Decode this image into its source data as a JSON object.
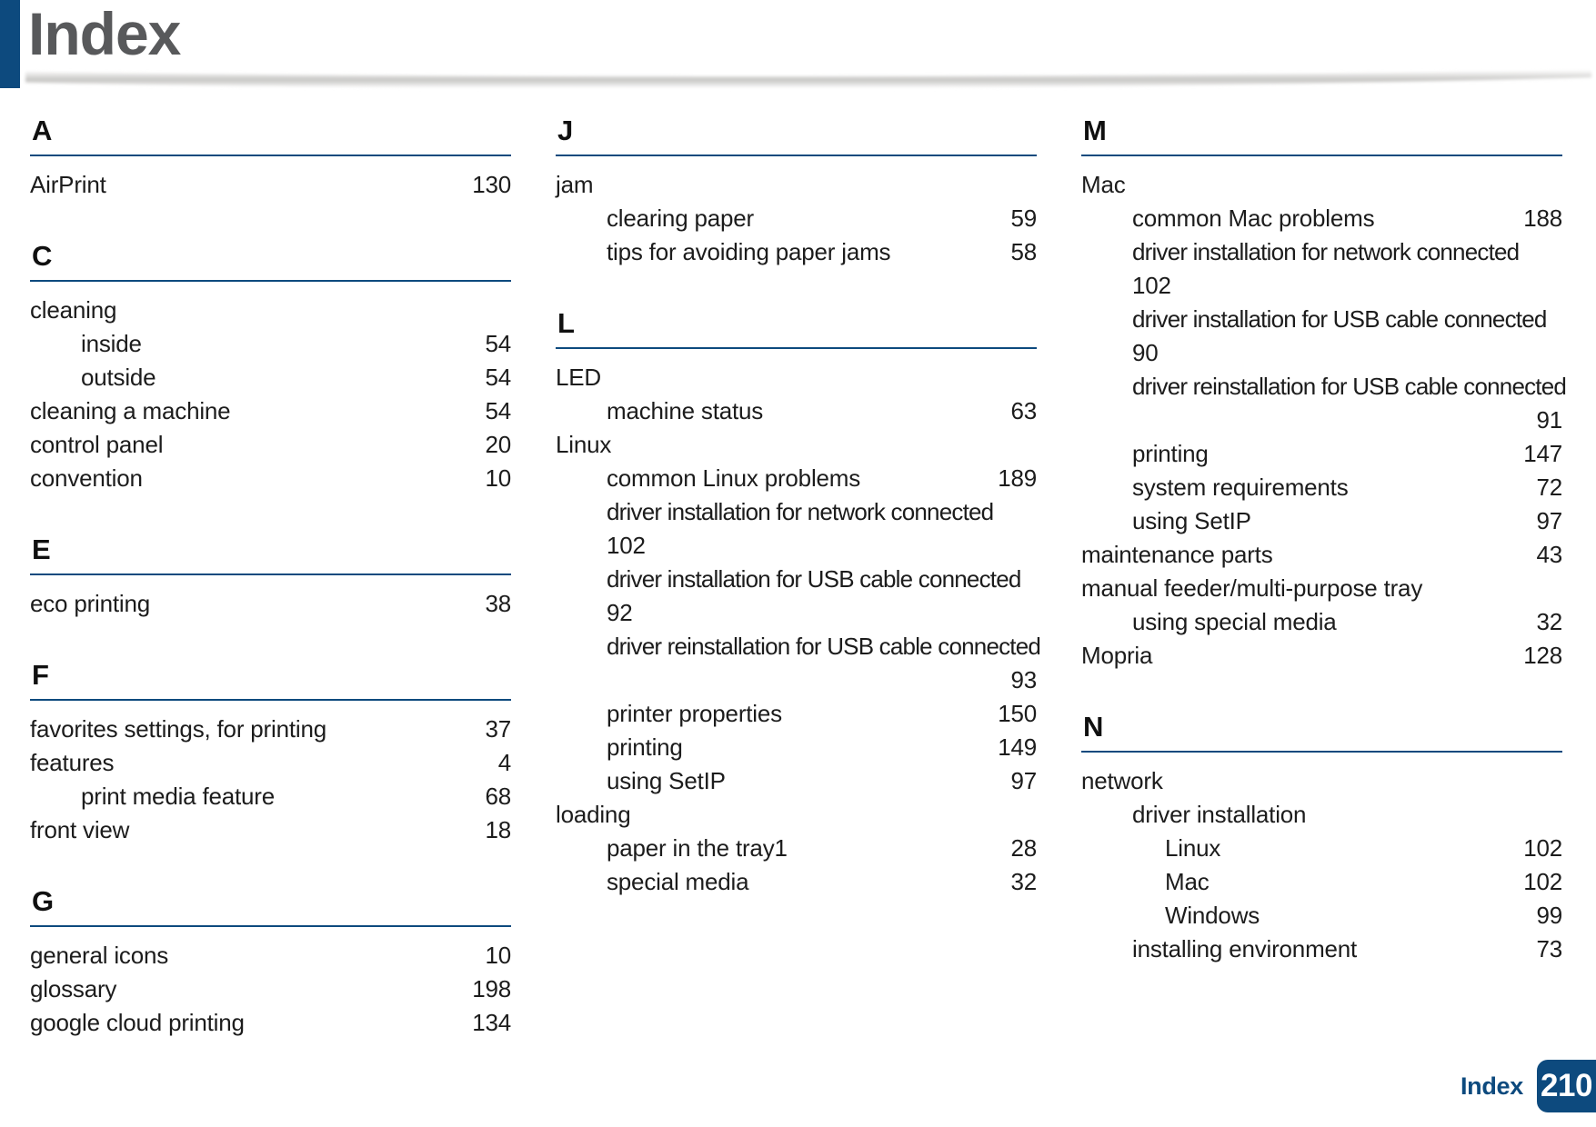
{
  "page": {
    "title": "Index",
    "footer": {
      "label": "Index",
      "page_number": "210"
    },
    "colors": {
      "navy": "#0d4a7e",
      "title_gray": "#58595b",
      "text": "#1c1c1c"
    }
  },
  "columns": [
    {
      "sections": [
        {
          "letter": "A",
          "entries": [
            {
              "text": "AirPrint",
              "page": "130",
              "level": 0
            }
          ]
        },
        {
          "letter": "C",
          "entries": [
            {
              "text": "cleaning",
              "level": 0
            },
            {
              "text": "inside",
              "page": "54",
              "level": 1
            },
            {
              "text": "outside",
              "page": "54",
              "level": 1
            },
            {
              "text": "cleaning a machine",
              "page": "54",
              "level": 0
            },
            {
              "text": "control panel",
              "page": "20",
              "level": 0
            },
            {
              "text": "convention",
              "page": "10",
              "level": 0
            }
          ]
        },
        {
          "letter": "E",
          "entries": [
            {
              "text": "eco printing",
              "page": "38",
              "level": 0
            }
          ]
        },
        {
          "letter": "F",
          "entries": [
            {
              "text": "favorites settings, for printing",
              "page": "37",
              "level": 0
            },
            {
              "text": "features",
              "page": "4",
              "level": 0
            },
            {
              "text": "print media feature",
              "page": "68",
              "level": 1
            },
            {
              "text": "front view",
              "page": "18",
              "level": 0
            }
          ]
        },
        {
          "letter": "G",
          "entries": [
            {
              "text": "general icons",
              "page": "10",
              "level": 0
            },
            {
              "text": "glossary",
              "page": "198",
              "level": 0
            },
            {
              "text": "google cloud printing",
              "page": "134",
              "level": 0
            }
          ]
        }
      ]
    },
    {
      "sections": [
        {
          "letter": "J",
          "entries": [
            {
              "text": "jam",
              "level": 0
            },
            {
              "text": "clearing paper",
              "page": "59",
              "level": 1
            },
            {
              "text": "tips for avoiding paper jams",
              "page": "58",
              "level": 1
            }
          ]
        },
        {
          "letter": "L",
          "entries": [
            {
              "text": "LED",
              "level": 0
            },
            {
              "text": "machine status",
              "page": "63",
              "level": 1
            },
            {
              "text": "Linux",
              "level": 0
            },
            {
              "text": "common Linux problems",
              "page": "189",
              "level": 1
            },
            {
              "text": "driver installation for network connected",
              "page": "102",
              "level": 1,
              "wrap": "left"
            },
            {
              "text": "driver installation for USB cable connected",
              "page": "92",
              "level": 1,
              "wrap": "left"
            },
            {
              "text": "driver reinstallation for USB cable connected",
              "page": "93",
              "level": 1,
              "wrap": "right"
            },
            {
              "text": "printer properties",
              "page": "150",
              "level": 1
            },
            {
              "text": "printing",
              "page": "149",
              "level": 1
            },
            {
              "text": "using SetIP",
              "page": "97",
              "level": 1
            },
            {
              "text": "loading",
              "level": 0
            },
            {
              "text": "paper in the tray1",
              "page": "28",
              "level": 1
            },
            {
              "text": "special media",
              "page": "32",
              "level": 1
            }
          ]
        }
      ]
    },
    {
      "sections": [
        {
          "letter": "M",
          "entries": [
            {
              "text": "Mac",
              "level": 0
            },
            {
              "text": "common Mac problems",
              "page": "188",
              "level": 1
            },
            {
              "text": "driver installation for network connected",
              "page": "102",
              "level": 1,
              "wrap": "left"
            },
            {
              "text": "driver installation for USB cable connected",
              "page": "90",
              "level": 1,
              "wrap": "left"
            },
            {
              "text": "driver reinstallation for USB cable connected",
              "page": "91",
              "level": 1,
              "wrap": "right"
            },
            {
              "text": "printing",
              "page": "147",
              "level": 1
            },
            {
              "text": "system requirements",
              "page": "72",
              "level": 1
            },
            {
              "text": "using SetIP",
              "page": "97",
              "level": 1
            },
            {
              "text": "maintenance parts",
              "page": "43",
              "level": 0
            },
            {
              "text": "manual feeder/multi-purpose tray",
              "level": 0
            },
            {
              "text": "using special media",
              "page": "32",
              "level": 1
            },
            {
              "text": "Mopria",
              "page": "128",
              "level": 0
            }
          ]
        },
        {
          "letter": "N",
          "entries": [
            {
              "text": "network",
              "level": 0
            },
            {
              "text": "driver installation",
              "level": 1
            },
            {
              "text": "Linux",
              "page": "102",
              "level": 2
            },
            {
              "text": "Mac",
              "page": "102",
              "level": 2
            },
            {
              "text": "Windows",
              "page": "99",
              "level": 2
            },
            {
              "text": "installing environment",
              "page": "73",
              "level": 1
            }
          ]
        }
      ]
    }
  ]
}
